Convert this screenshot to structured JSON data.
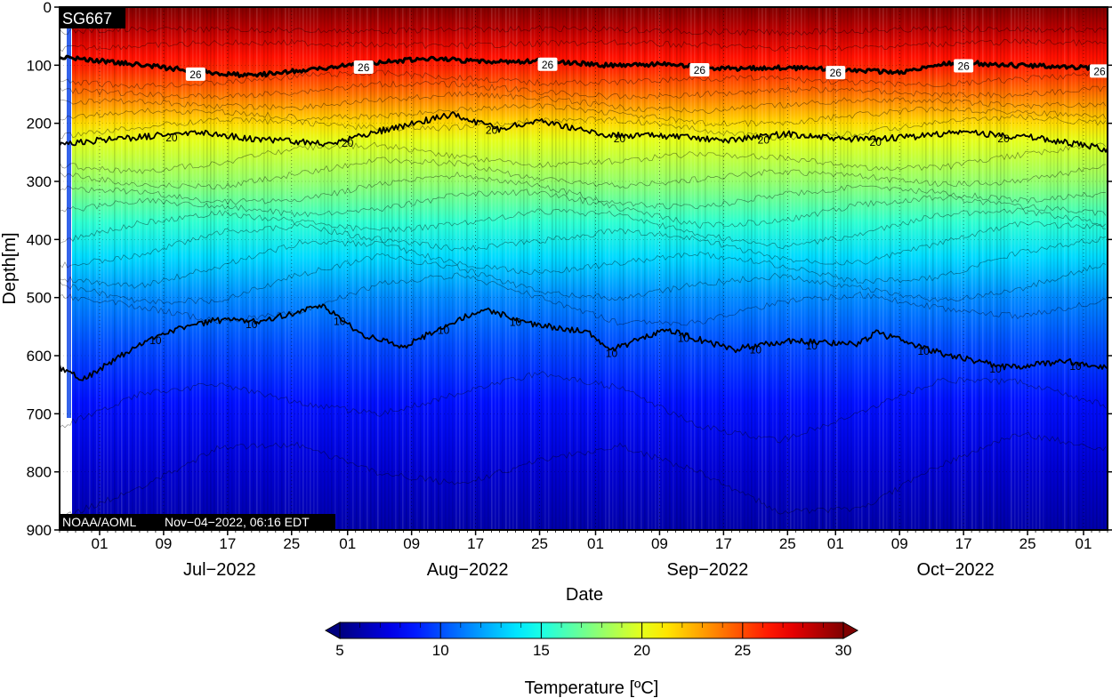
{
  "figure": {
    "plot_id": "SG667",
    "credit": "NOAA/AOML",
    "timestamp": "Nov−04−2022, 06:16 EDT"
  },
  "chart_data": {
    "type": "heatmap",
    "title": "",
    "xlabel": "Date",
    "ylabel": "Depth[m]",
    "x_range": [
      "2022-06-26",
      "2022-11-04"
    ],
    "ylim": [
      0,
      900
    ],
    "y_inverted": true,
    "y_ticks": [
      0,
      100,
      200,
      300,
      400,
      500,
      600,
      700,
      800,
      900
    ],
    "x_ticks": [
      {
        "date": "2022-07-01",
        "label": "01"
      },
      {
        "date": "2022-07-09",
        "label": "09"
      },
      {
        "date": "2022-07-17",
        "label": "17"
      },
      {
        "date": "2022-07-25",
        "label": "25"
      },
      {
        "date": "2022-08-01",
        "label": "01"
      },
      {
        "date": "2022-08-09",
        "label": "09"
      },
      {
        "date": "2022-08-17",
        "label": "17"
      },
      {
        "date": "2022-08-25",
        "label": "25"
      },
      {
        "date": "2022-09-01",
        "label": "01"
      },
      {
        "date": "2022-09-09",
        "label": "09"
      },
      {
        "date": "2022-09-17",
        "label": "17"
      },
      {
        "date": "2022-09-25",
        "label": "25"
      },
      {
        "date": "2022-10-01",
        "label": "01"
      },
      {
        "date": "2022-10-09",
        "label": "09"
      },
      {
        "date": "2022-10-17",
        "label": "17"
      },
      {
        "date": "2022-10-25",
        "label": "25"
      },
      {
        "date": "2022-11-01",
        "label": "01"
      }
    ],
    "month_labels": [
      {
        "date": "2022-07-16",
        "label": "Jul−2022"
      },
      {
        "date": "2022-08-16",
        "label": "Aug−2022"
      },
      {
        "date": "2022-09-15",
        "label": "Sep−2022"
      },
      {
        "date": "2022-10-16",
        "label": "Oct−2022"
      }
    ],
    "colorbar": {
      "label": "Temperature [ºC]",
      "range": [
        5,
        30
      ],
      "ticks": [
        5,
        10,
        15,
        20,
        25,
        30
      ],
      "colormap": "jet",
      "extend": "both"
    },
    "grid": "dotted",
    "isotherms": [
      {
        "level": 26,
        "label": "26",
        "style": "bold",
        "points": [
          [
            "2022-06-26",
            85
          ],
          [
            "2022-07-05",
            98
          ],
          [
            "2022-07-13",
            110
          ],
          [
            "2022-07-20",
            118
          ],
          [
            "2022-07-27",
            108
          ],
          [
            "2022-08-05",
            95
          ],
          [
            "2022-08-11",
            88
          ],
          [
            "2022-08-19",
            95
          ],
          [
            "2022-08-25",
            92
          ],
          [
            "2022-09-02",
            100
          ],
          [
            "2022-09-10",
            98
          ],
          [
            "2022-09-17",
            106
          ],
          [
            "2022-09-25",
            104
          ],
          [
            "2022-10-02",
            108
          ],
          [
            "2022-10-09",
            112
          ],
          [
            "2022-10-16",
            95
          ],
          [
            "2022-10-23",
            100
          ],
          [
            "2022-11-04",
            105
          ]
        ],
        "labels_at": [
          "2022-07-13",
          "2022-08-03",
          "2022-08-26",
          "2022-09-14",
          "2022-10-01",
          "2022-10-17",
          "2022-11-03"
        ]
      },
      {
        "level": 20,
        "label": "20",
        "style": "solid",
        "points": [
          [
            "2022-06-26",
            235
          ],
          [
            "2022-07-05",
            225
          ],
          [
            "2022-07-13",
            215
          ],
          [
            "2022-07-21",
            228
          ],
          [
            "2022-07-30",
            235
          ],
          [
            "2022-08-06",
            210
          ],
          [
            "2022-08-14",
            185
          ],
          [
            "2022-08-20",
            210
          ],
          [
            "2022-08-25",
            195
          ],
          [
            "2022-09-02",
            220
          ],
          [
            "2022-09-10",
            222
          ],
          [
            "2022-09-17",
            230
          ],
          [
            "2022-09-25",
            218
          ],
          [
            "2022-10-02",
            228
          ],
          [
            "2022-10-09",
            225
          ],
          [
            "2022-10-17",
            215
          ],
          [
            "2022-10-26",
            225
          ],
          [
            "2022-11-04",
            245
          ]
        ],
        "labels_at": [
          "2022-07-10",
          "2022-08-01",
          "2022-08-19",
          "2022-09-04",
          "2022-09-22",
          "2022-10-06",
          "2022-10-22"
        ]
      },
      {
        "level": 10,
        "label": "10",
        "style": "solid",
        "points": [
          [
            "2022-06-26",
            620
          ],
          [
            "2022-06-29",
            640
          ],
          [
            "2022-07-05",
            590
          ],
          [
            "2022-07-09",
            560
          ],
          [
            "2022-07-15",
            540
          ],
          [
            "2022-07-21",
            540
          ],
          [
            "2022-07-29",
            515
          ],
          [
            "2022-08-03",
            565
          ],
          [
            "2022-08-08",
            585
          ],
          [
            "2022-08-13",
            550
          ],
          [
            "2022-08-18",
            520
          ],
          [
            "2022-08-24",
            545
          ],
          [
            "2022-08-31",
            560
          ],
          [
            "2022-09-03",
            590
          ],
          [
            "2022-09-10",
            555
          ],
          [
            "2022-09-18",
            590
          ],
          [
            "2022-09-25",
            575
          ],
          [
            "2022-10-04",
            580
          ],
          [
            "2022-10-06",
            560
          ],
          [
            "2022-10-14",
            595
          ],
          [
            "2022-10-22",
            620
          ],
          [
            "2022-10-30",
            610
          ],
          [
            "2022-11-04",
            620
          ]
        ],
        "labels_at": [
          "2022-07-08",
          "2022-07-20",
          "2022-07-31",
          "2022-08-13",
          "2022-08-22",
          "2022-09-03",
          "2022-09-12",
          "2022-09-21",
          "2022-09-28",
          "2022-10-12",
          "2022-10-21",
          "2022-10-31"
        ]
      }
    ],
    "other_isotherms": [
      {
        "level": 28,
        "depth": 40
      },
      {
        "level": 27,
        "depth": 65
      },
      {
        "level": 25,
        "depth": 125
      },
      {
        "level": 24,
        "depth": 145
      },
      {
        "level": 23,
        "depth": 165
      },
      {
        "level": 22,
        "depth": 185
      },
      {
        "level": 21,
        "depth": 205
      },
      {
        "level": 19,
        "depth": 260
      },
      {
        "level": 18,
        "depth": 290
      },
      {
        "level": 17,
        "depth": 320
      },
      {
        "level": 16,
        "depth": 345
      },
      {
        "level": 15,
        "depth": 375
      },
      {
        "level": 14,
        "depth": 405
      },
      {
        "level": 13,
        "depth": 440
      },
      {
        "level": 12,
        "depth": 475
      },
      {
        "level": 11,
        "depth": 510
      },
      {
        "level": 9,
        "depth": 680
      },
      {
        "level": 8,
        "depth": 800
      }
    ],
    "temperature_profile": [
      [
        0,
        30
      ],
      [
        40,
        28.5
      ],
      [
        85,
        26.5
      ],
      [
        105,
        26
      ],
      [
        150,
        24
      ],
      [
        200,
        21.5
      ],
      [
        230,
        20
      ],
      [
        300,
        18
      ],
      [
        370,
        15.5
      ],
      [
        430,
        13.5
      ],
      [
        500,
        11.5
      ],
      [
        580,
        10
      ],
      [
        680,
        8.5
      ],
      [
        800,
        7
      ],
      [
        900,
        6
      ]
    ]
  }
}
